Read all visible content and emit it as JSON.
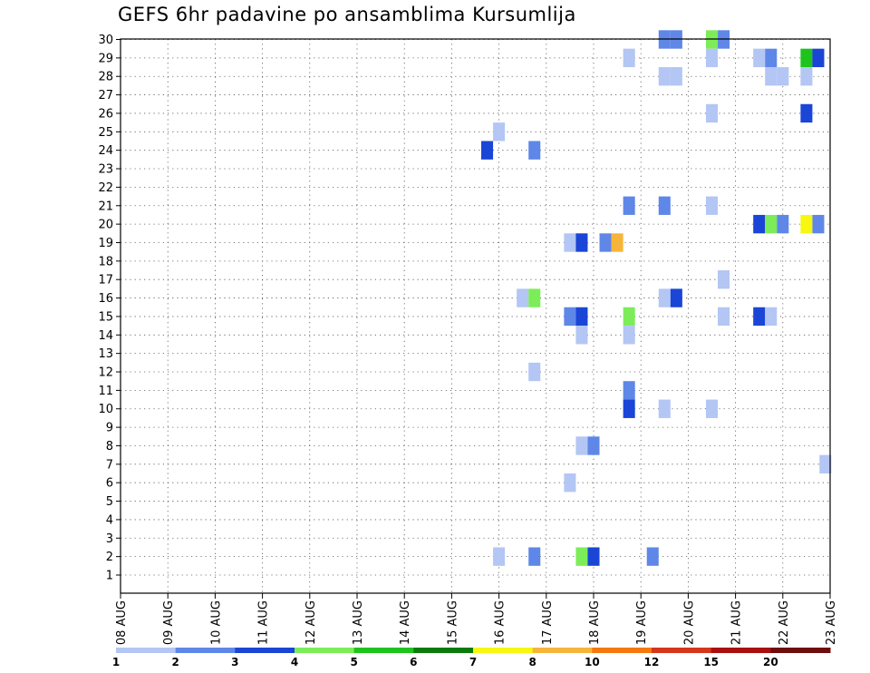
{
  "chart_data": {
    "type": "heatmap",
    "title": "GEFS 6hr padavine po ansamblima Kursumlija",
    "x_ticks": [
      "08 AUG",
      "09 AUG",
      "10 AUG",
      "11 AUG",
      "12 AUG",
      "13 AUG",
      "14 AUG",
      "15 AUG",
      "16 AUG",
      "17 AUG",
      "18 AUG",
      "19 AUG",
      "20 AUG",
      "21 AUG",
      "22 AUG",
      "23 AUG"
    ],
    "y_ticks": [
      "1",
      "2",
      "3",
      "4",
      "5",
      "6",
      "7",
      "8",
      "9",
      "10",
      "11",
      "12",
      "13",
      "14",
      "15",
      "16",
      "17",
      "18",
      "19",
      "20",
      "21",
      "22",
      "23",
      "24",
      "25",
      "26",
      "27",
      "28",
      "29",
      "30"
    ],
    "x_range_days": [
      0,
      15
    ],
    "y_range": [
      1,
      30
    ],
    "grid": true,
    "colorbar": {
      "labels": [
        "1",
        "2",
        "3",
        "4",
        "5",
        "6",
        "7",
        "8",
        "10",
        "12",
        "15",
        "20"
      ],
      "colors": [
        "#b3c6f4",
        "#5f87e8",
        "#1a45d6",
        "#7ced58",
        "#1ec31e",
        "#0b7a0b",
        "#f7f710",
        "#f7b43a",
        "#f5780e",
        "#d6361a",
        "#a80f0f",
        "#6e0d0d"
      ]
    },
    "cells": [
      {
        "day": 11.5,
        "member": 30,
        "value": 2.5
      },
      {
        "day": 11.75,
        "member": 30,
        "value": 2.5
      },
      {
        "day": 12.5,
        "member": 30,
        "value": 4.5
      },
      {
        "day": 12.75,
        "member": 30,
        "value": 2.5
      },
      {
        "day": 10.75,
        "member": 29,
        "value": 1.5
      },
      {
        "day": 12.5,
        "member": 29,
        "value": 1.5
      },
      {
        "day": 13.5,
        "member": 29,
        "value": 1.5
      },
      {
        "day": 13.75,
        "member": 29,
        "value": 2.5
      },
      {
        "day": 14.5,
        "member": 29,
        "value": 5.5
      },
      {
        "day": 14.75,
        "member": 29,
        "value": 3.5
      },
      {
        "day": 11.5,
        "member": 28,
        "value": 1.5
      },
      {
        "day": 11.75,
        "member": 28,
        "value": 1.5
      },
      {
        "day": 13.75,
        "member": 28,
        "value": 1.5
      },
      {
        "day": 14.0,
        "member": 28,
        "value": 1.5
      },
      {
        "day": 14.5,
        "member": 28,
        "value": 1.5
      },
      {
        "day": 12.5,
        "member": 26,
        "value": 1.5
      },
      {
        "day": 14.5,
        "member": 26,
        "value": 3.5
      },
      {
        "day": 8.0,
        "member": 25,
        "value": 1.5
      },
      {
        "day": 7.75,
        "member": 24,
        "value": 3.5
      },
      {
        "day": 8.75,
        "member": 24,
        "value": 2.5
      },
      {
        "day": 10.75,
        "member": 21,
        "value": 2.5
      },
      {
        "day": 11.5,
        "member": 21,
        "value": 2.5
      },
      {
        "day": 12.5,
        "member": 21,
        "value": 1.5
      },
      {
        "day": 13.5,
        "member": 20,
        "value": 3.5
      },
      {
        "day": 13.75,
        "member": 20,
        "value": 4.5
      },
      {
        "day": 14.0,
        "member": 20,
        "value": 2.5
      },
      {
        "day": 14.5,
        "member": 20,
        "value": 7.5
      },
      {
        "day": 14.75,
        "member": 20,
        "value": 2.5
      },
      {
        "day": 9.5,
        "member": 19,
        "value": 1.5
      },
      {
        "day": 9.75,
        "member": 19,
        "value": 3.5
      },
      {
        "day": 10.25,
        "member": 19,
        "value": 2.5
      },
      {
        "day": 10.5,
        "member": 19,
        "value": 9
      },
      {
        "day": 12.75,
        "member": 17,
        "value": 1.5
      },
      {
        "day": 8.5,
        "member": 16,
        "value": 1.5
      },
      {
        "day": 8.75,
        "member": 16,
        "value": 4.5
      },
      {
        "day": 11.5,
        "member": 16,
        "value": 1.5
      },
      {
        "day": 11.75,
        "member": 16,
        "value": 3.5
      },
      {
        "day": 9.5,
        "member": 15,
        "value": 2.5
      },
      {
        "day": 9.75,
        "member": 15,
        "value": 3.5
      },
      {
        "day": 10.75,
        "member": 15,
        "value": 4.5
      },
      {
        "day": 12.75,
        "member": 15,
        "value": 1.5
      },
      {
        "day": 13.5,
        "member": 15,
        "value": 3.5
      },
      {
        "day": 13.75,
        "member": 15,
        "value": 1.5
      },
      {
        "day": 9.75,
        "member": 14,
        "value": 1.5
      },
      {
        "day": 10.75,
        "member": 14,
        "value": 1.5
      },
      {
        "day": 8.75,
        "member": 12,
        "value": 1.5
      },
      {
        "day": 10.75,
        "member": 11,
        "value": 2.5
      },
      {
        "day": 10.75,
        "member": 10,
        "value": 3.5
      },
      {
        "day": 11.5,
        "member": 10,
        "value": 1.5
      },
      {
        "day": 12.5,
        "member": 10,
        "value": 1.5
      },
      {
        "day": 9.75,
        "member": 8,
        "value": 1.5
      },
      {
        "day": 10.0,
        "member": 8,
        "value": 2.5
      },
      {
        "day": 14.9,
        "member": 7,
        "value": 1.5
      },
      {
        "day": 9.5,
        "member": 6,
        "value": 1.5
      },
      {
        "day": 8.0,
        "member": 2,
        "value": 1.5
      },
      {
        "day": 8.75,
        "member": 2,
        "value": 2.5
      },
      {
        "day": 9.75,
        "member": 2,
        "value": 4.5
      },
      {
        "day": 10.0,
        "member": 2,
        "value": 3.5
      },
      {
        "day": 11.25,
        "member": 2,
        "value": 2.5
      }
    ]
  }
}
